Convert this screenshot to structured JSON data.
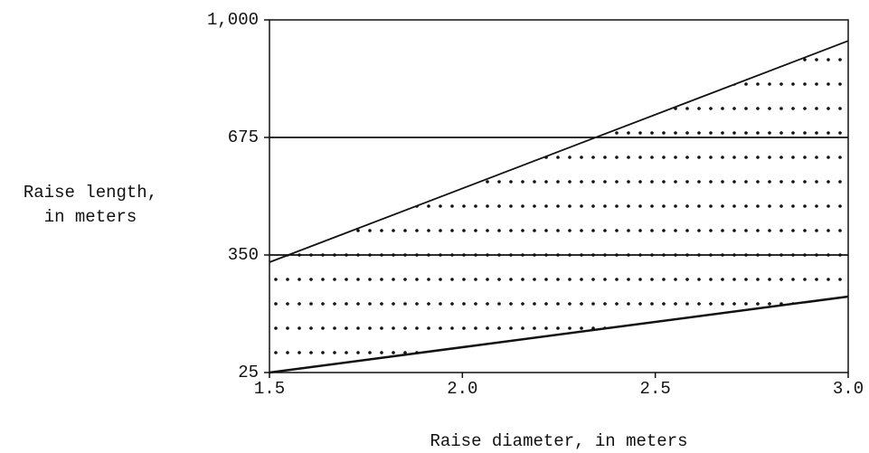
{
  "chart_data": {
    "type": "line",
    "xlabel": "Raise diameter, in meters",
    "ylabel": [
      "Raise length,",
      "in meters"
    ],
    "x": [
      1.5,
      3.0
    ],
    "series": [
      {
        "color": "#111111",
        "values": [
          330,
          942
        ]
      },
      {
        "color": "#111111",
        "values": [
          25,
          235
        ]
      },
      {
        "color": "#111111",
        "values": [
          350,
          350
        ]
      },
      {
        "color": "#111111",
        "values": [
          675,
          675
        ]
      }
    ],
    "xlim": [
      1.5,
      3.0
    ],
    "xticks": [
      1.5,
      {
        "value": 2.0,
        "label": "2.0"
      },
      2.5,
      {
        "value": 3.0,
        "label": "3.0"
      }
    ],
    "ylim": [
      25,
      1000
    ],
    "yticks": [
      25,
      350,
      675,
      {
        "value": 1000,
        "label": "1,000"
      }
    ]
  }
}
